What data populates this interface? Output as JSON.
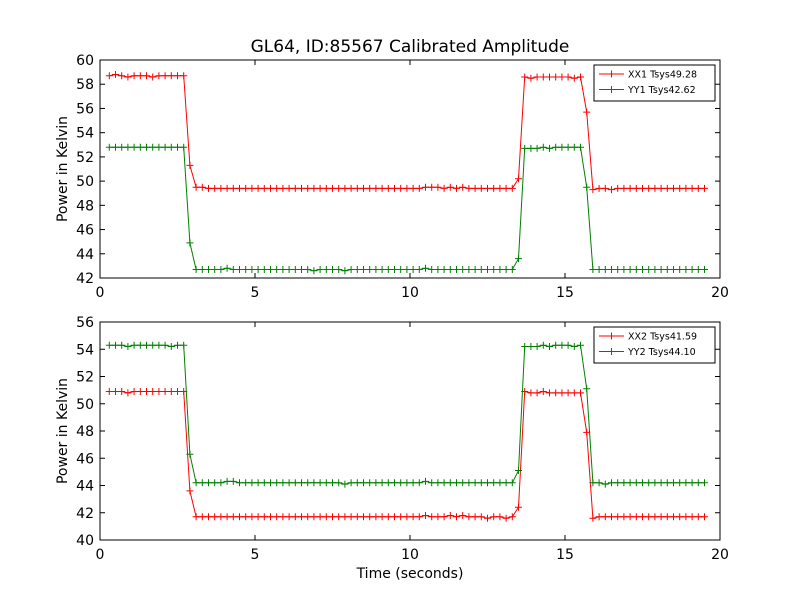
{
  "chart_data": [
    {
      "type": "line",
      "title": "GL64, ID:85567 Calibrated Amplitude",
      "xlabel": "",
      "ylabel": "Power in Kelvin",
      "xlim": [
        0,
        20
      ],
      "ylim": [
        42,
        60
      ],
      "xticks": [
        "0",
        "5",
        "10",
        "15",
        "20"
      ],
      "yticks": [
        "42",
        "44",
        "46",
        "48",
        "50",
        "52",
        "54",
        "56",
        "58",
        "60"
      ],
      "grid": false,
      "legend_position": "top-right",
      "x": [
        0.3,
        0.5,
        0.7,
        0.9,
        1.1,
        1.3,
        1.5,
        1.7,
        1.9,
        2.1,
        2.3,
        2.5,
        2.7,
        2.9,
        3.1,
        3.3,
        3.5,
        3.7,
        3.9,
        4.1,
        4.3,
        4.5,
        4.7,
        4.9,
        5.1,
        5.3,
        5.5,
        5.7,
        5.9,
        6.1,
        6.3,
        6.5,
        6.7,
        6.9,
        7.1,
        7.3,
        7.5,
        7.7,
        7.9,
        8.1,
        8.3,
        8.5,
        8.7,
        8.9,
        9.1,
        9.3,
        9.5,
        9.7,
        9.9,
        10.1,
        10.3,
        10.5,
        10.7,
        10.9,
        11.1,
        11.3,
        11.5,
        11.7,
        11.9,
        12.1,
        12.3,
        12.5,
        12.7,
        12.9,
        13.1,
        13.3,
        13.5,
        13.7,
        13.9,
        14.1,
        14.3,
        14.5,
        14.7,
        14.9,
        15.1,
        15.3,
        15.5,
        15.7,
        15.9,
        16.1,
        16.3,
        16.5,
        16.7,
        16.9,
        17.1,
        17.3,
        17.5,
        17.7,
        17.9,
        18.1,
        18.3,
        18.5,
        18.7,
        18.9,
        19.1,
        19.3,
        19.5
      ],
      "series": [
        {
          "name": "XX1 Tsys49.28",
          "color": "#ff0000",
          "values": [
            58.7,
            58.8,
            58.7,
            58.6,
            58.7,
            58.7,
            58.7,
            58.6,
            58.7,
            58.7,
            58.7,
            58.7,
            58.7,
            51.3,
            49.5,
            49.5,
            49.4,
            49.4,
            49.4,
            49.4,
            49.4,
            49.4,
            49.4,
            49.4,
            49.4,
            49.4,
            49.4,
            49.4,
            49.4,
            49.4,
            49.4,
            49.4,
            49.4,
            49.4,
            49.4,
            49.4,
            49.4,
            49.4,
            49.4,
            49.4,
            49.4,
            49.4,
            49.4,
            49.4,
            49.4,
            49.4,
            49.4,
            49.4,
            49.4,
            49.4,
            49.4,
            49.5,
            49.5,
            49.5,
            49.4,
            49.5,
            49.4,
            49.5,
            49.4,
            49.4,
            49.4,
            49.4,
            49.4,
            49.4,
            49.4,
            49.4,
            50.2,
            58.6,
            58.5,
            58.6,
            58.6,
            58.6,
            58.6,
            58.6,
            58.6,
            58.5,
            58.6,
            55.7,
            49.3,
            49.4,
            49.4,
            49.3,
            49.4,
            49.4,
            49.4,
            49.4,
            49.4,
            49.4,
            49.4,
            49.4,
            49.4,
            49.4,
            49.4,
            49.4,
            49.4,
            49.4,
            49.4
          ]
        },
        {
          "name": "YY1 Tsys42.62",
          "color": "#008000",
          "values": [
            52.8,
            52.8,
            52.8,
            52.8,
            52.8,
            52.8,
            52.8,
            52.8,
            52.8,
            52.8,
            52.8,
            52.8,
            52.8,
            44.9,
            42.7,
            42.7,
            42.7,
            42.7,
            42.7,
            42.8,
            42.7,
            42.7,
            42.7,
            42.7,
            42.7,
            42.7,
            42.7,
            42.7,
            42.7,
            42.7,
            42.7,
            42.7,
            42.7,
            42.6,
            42.7,
            42.7,
            42.7,
            42.7,
            42.6,
            42.7,
            42.7,
            42.7,
            42.7,
            42.7,
            42.7,
            42.7,
            42.7,
            42.7,
            42.7,
            42.7,
            42.7,
            42.8,
            42.7,
            42.7,
            42.7,
            42.7,
            42.7,
            42.7,
            42.7,
            42.7,
            42.7,
            42.7,
            42.7,
            42.7,
            42.7,
            42.7,
            43.6,
            52.7,
            52.7,
            52.7,
            52.8,
            52.7,
            52.8,
            52.8,
            52.8,
            52.8,
            52.8,
            49.5,
            42.7,
            42.7,
            42.7,
            42.7,
            42.7,
            42.7,
            42.7,
            42.7,
            42.7,
            42.7,
            42.7,
            42.7,
            42.7,
            42.7,
            42.7,
            42.7,
            42.7,
            42.7,
            42.7
          ]
        }
      ]
    },
    {
      "type": "line",
      "title": "",
      "xlabel": "Time (seconds)",
      "ylabel": "Power in Kelvin",
      "xlim": [
        0,
        20
      ],
      "ylim": [
        40,
        56
      ],
      "xticks": [
        "0",
        "5",
        "10",
        "15",
        "20"
      ],
      "yticks": [
        "40",
        "42",
        "44",
        "46",
        "48",
        "50",
        "52",
        "54",
        "56"
      ],
      "grid": false,
      "legend_position": "top-right",
      "x": [
        0.3,
        0.5,
        0.7,
        0.9,
        1.1,
        1.3,
        1.5,
        1.7,
        1.9,
        2.1,
        2.3,
        2.5,
        2.7,
        2.9,
        3.1,
        3.3,
        3.5,
        3.7,
        3.9,
        4.1,
        4.3,
        4.5,
        4.7,
        4.9,
        5.1,
        5.3,
        5.5,
        5.7,
        5.9,
        6.1,
        6.3,
        6.5,
        6.7,
        6.9,
        7.1,
        7.3,
        7.5,
        7.7,
        7.9,
        8.1,
        8.3,
        8.5,
        8.7,
        8.9,
        9.1,
        9.3,
        9.5,
        9.7,
        9.9,
        10.1,
        10.3,
        10.5,
        10.7,
        10.9,
        11.1,
        11.3,
        11.5,
        11.7,
        11.9,
        12.1,
        12.3,
        12.5,
        12.7,
        12.9,
        13.1,
        13.3,
        13.5,
        13.7,
        13.9,
        14.1,
        14.3,
        14.5,
        14.7,
        14.9,
        15.1,
        15.3,
        15.5,
        15.7,
        15.9,
        16.1,
        16.3,
        16.5,
        16.7,
        16.9,
        17.1,
        17.3,
        17.5,
        17.7,
        17.9,
        18.1,
        18.3,
        18.5,
        18.7,
        18.9,
        19.1,
        19.3,
        19.5
      ],
      "series": [
        {
          "name": "XX2 Tsys41.59",
          "color": "#ff0000",
          "values": [
            50.9,
            50.9,
            50.9,
            50.8,
            50.9,
            50.9,
            50.9,
            50.9,
            50.9,
            50.9,
            50.9,
            50.9,
            50.9,
            43.6,
            41.7,
            41.7,
            41.7,
            41.7,
            41.7,
            41.7,
            41.7,
            41.7,
            41.7,
            41.7,
            41.7,
            41.7,
            41.7,
            41.7,
            41.7,
            41.7,
            41.7,
            41.7,
            41.7,
            41.7,
            41.7,
            41.7,
            41.7,
            41.7,
            41.7,
            41.7,
            41.7,
            41.7,
            41.7,
            41.7,
            41.7,
            41.7,
            41.7,
            41.7,
            41.7,
            41.7,
            41.7,
            41.8,
            41.7,
            41.7,
            41.7,
            41.8,
            41.7,
            41.8,
            41.7,
            41.7,
            41.7,
            41.6,
            41.7,
            41.7,
            41.6,
            41.7,
            42.4,
            50.9,
            50.8,
            50.8,
            50.9,
            50.8,
            50.8,
            50.8,
            50.8,
            50.8,
            50.8,
            47.9,
            41.6,
            41.7,
            41.7,
            41.7,
            41.7,
            41.7,
            41.7,
            41.7,
            41.7,
            41.7,
            41.7,
            41.7,
            41.7,
            41.7,
            41.7,
            41.7,
            41.7,
            41.7,
            41.7
          ]
        },
        {
          "name": "YY2 Tsys44.10",
          "color": "#008000",
          "values": [
            54.3,
            54.3,
            54.3,
            54.2,
            54.3,
            54.3,
            54.3,
            54.3,
            54.3,
            54.3,
            54.2,
            54.3,
            54.3,
            46.3,
            44.2,
            44.2,
            44.2,
            44.2,
            44.2,
            44.3,
            44.3,
            44.2,
            44.2,
            44.2,
            44.2,
            44.2,
            44.2,
            44.2,
            44.2,
            44.2,
            44.2,
            44.2,
            44.2,
            44.2,
            44.2,
            44.2,
            44.2,
            44.2,
            44.1,
            44.2,
            44.2,
            44.2,
            44.2,
            44.2,
            44.2,
            44.2,
            44.2,
            44.2,
            44.2,
            44.2,
            44.2,
            44.3,
            44.2,
            44.2,
            44.2,
            44.2,
            44.2,
            44.2,
            44.2,
            44.2,
            44.2,
            44.2,
            44.2,
            44.2,
            44.2,
            44.2,
            45.1,
            54.2,
            54.2,
            54.2,
            54.3,
            54.2,
            54.3,
            54.3,
            54.3,
            54.2,
            54.3,
            51.1,
            44.2,
            44.2,
            44.1,
            44.2,
            44.2,
            44.2,
            44.2,
            44.2,
            44.2,
            44.2,
            44.2,
            44.2,
            44.2,
            44.2,
            44.2,
            44.2,
            44.2,
            44.2,
            44.2
          ]
        }
      ]
    }
  ]
}
